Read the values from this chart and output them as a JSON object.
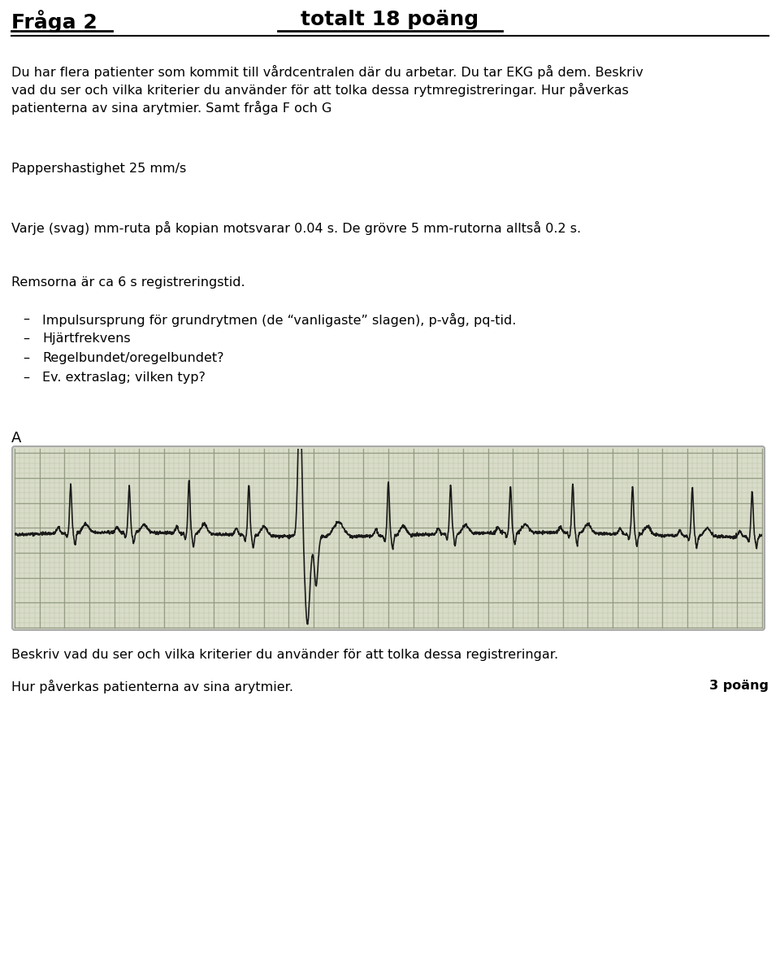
{
  "title_left": "Fråga 2",
  "title_right": "totalt 18 poäng",
  "line1": "Du har flera patienter som kommit till vårdcentralen där du arbetar. Du tar EKG på dem. Beskriv",
  "line2": "vad du ser och vilka kriterier du använder för att tolka dessa rytmregistreringar. Hur påverkas",
  "line3": "patienterna av sina arytmier. Samt fråga F och G",
  "paragraph2": "Pappershastighet 25 mm/s",
  "paragraph3": "Varje (svag) mm-ruta på kopian motsvarar 0.04 s. De grövre 5 mm-rutorna alltså 0.2 s.",
  "paragraph4": "Remsorna är ca 6 s registreringstid.",
  "bullet1": "Impulsursprung för grundrytmen (de “vanligaste” slagen), p-våg, pq-tid.",
  "bullet2": "Hjärtfrekvens",
  "bullet3": "Regelbundet/oregelbundet?",
  "bullet4": "Ev. extraslag; vilken typ?",
  "label_A": "A",
  "bottom_text1": "Beskriv vad du ser och vilka kriterier du använder för att tolka dessa registreringar.",
  "bottom_text2_left": "Hur påverkas patienterna av sina arytmier.",
  "bottom_text2_right": "3 poäng",
  "bg_color": "#ffffff",
  "text_color": "#000000",
  "ecg_bg_color": "#d8dcc8",
  "ecg_grid_minor_color": "#b0b8a0",
  "ecg_grid_major_color": "#909880",
  "ecg_line_color": "#1a1a1a",
  "border_color": "#aaaaaa"
}
